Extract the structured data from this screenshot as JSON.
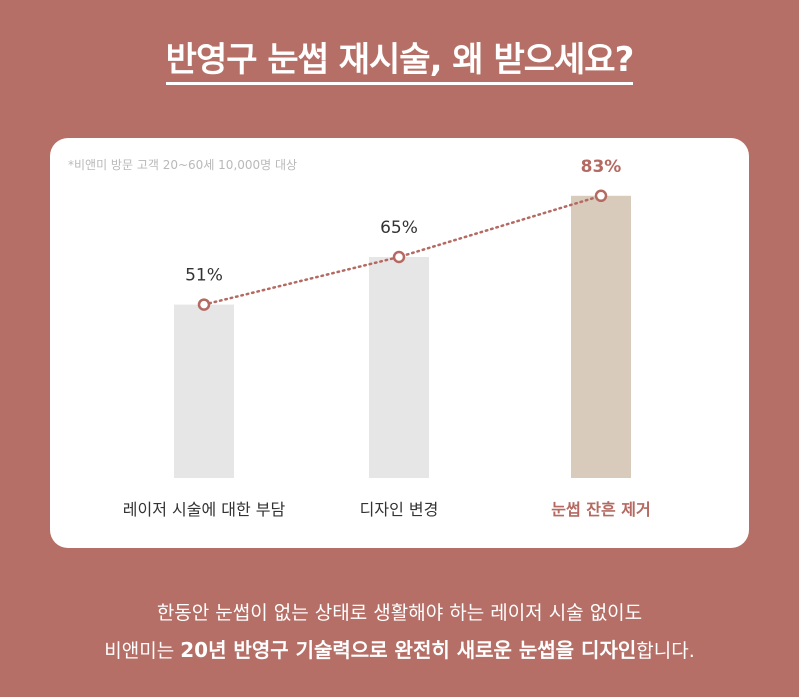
{
  "title": "반영구 눈썹 재시술, 왜 받으세요?",
  "note": "*비앤미 방문 고객 20~60세 10,000명 대상",
  "footer": {
    "line1": "한동안 눈썹이 없는 상태로 생활해야 하는 레이저 시술 없이도",
    "line2_pre": "비앤미는 ",
    "line2_bold": "20년 반영구 기술력으로 완전히 새로운 눈썹을 디자인",
    "line2_post": "합니다."
  },
  "colors": {
    "background": "#b56f66",
    "bar_default": "#e6e6e6",
    "bar_highlight": "#d8cbbc",
    "accent": "#b46a62"
  },
  "chart_data": {
    "type": "bar",
    "categories": [
      "레이저 시술에 대한 부담",
      "디자인 변경",
      "눈썹 잔흔 제거"
    ],
    "values": [
      51,
      65,
      83
    ],
    "data_labels": [
      "51%",
      "65%",
      "83%"
    ],
    "highlight_index": 2,
    "ylim": [
      0,
      100
    ],
    "grid": false,
    "overlay": "dotted-line"
  }
}
